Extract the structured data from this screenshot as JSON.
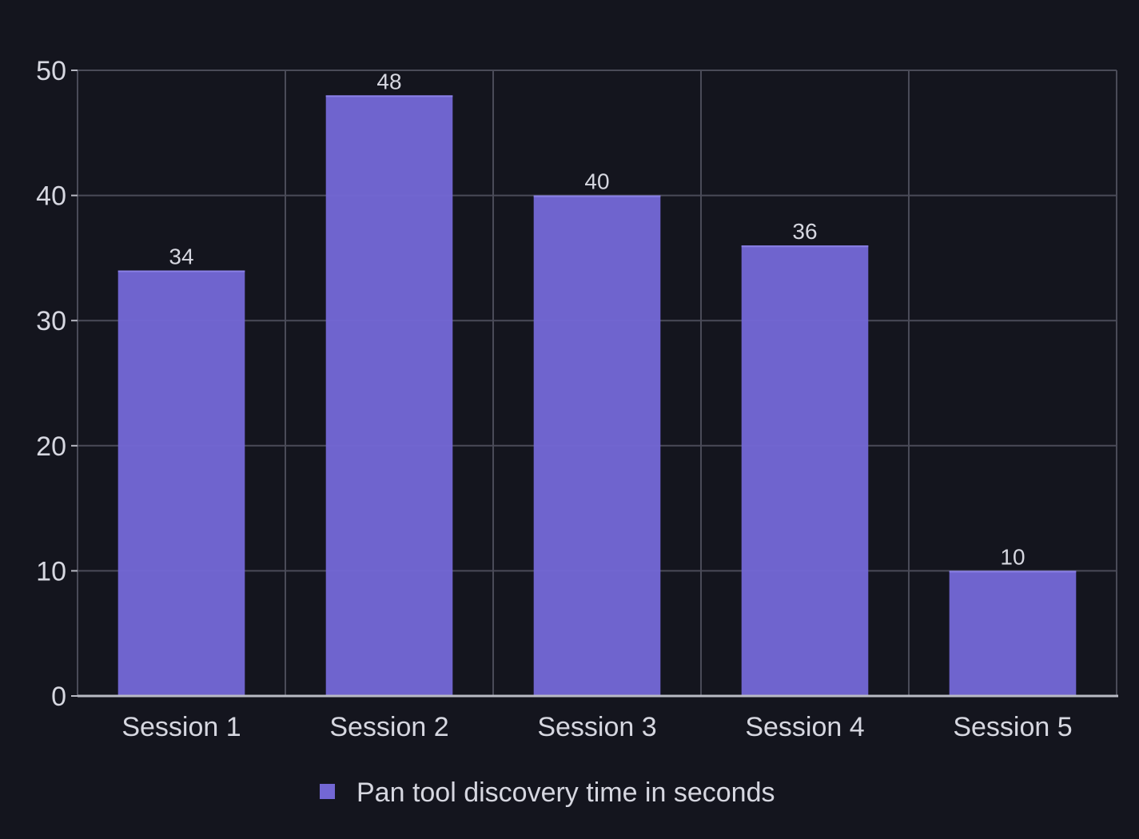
{
  "chart_data": {
    "type": "bar",
    "title": "",
    "xlabel": "",
    "ylabel": "",
    "categories": [
      "Session 1",
      "Session 2",
      "Session 3",
      "Session 4",
      "Session 5"
    ],
    "series": [
      {
        "name": "Pan tool discovery time in seconds",
        "values": [
          34,
          48,
          40,
          36,
          10
        ],
        "color": "#7367d4"
      }
    ],
    "ylim": [
      0,
      50
    ],
    "yticks": [
      0,
      10,
      20,
      30,
      40,
      50
    ],
    "grid": true,
    "legend": "bottom-center",
    "colors": {
      "background": "#14151e",
      "grid": "#4a4b58",
      "axis": "#b9bac4",
      "text": "#d6d7e0"
    }
  }
}
